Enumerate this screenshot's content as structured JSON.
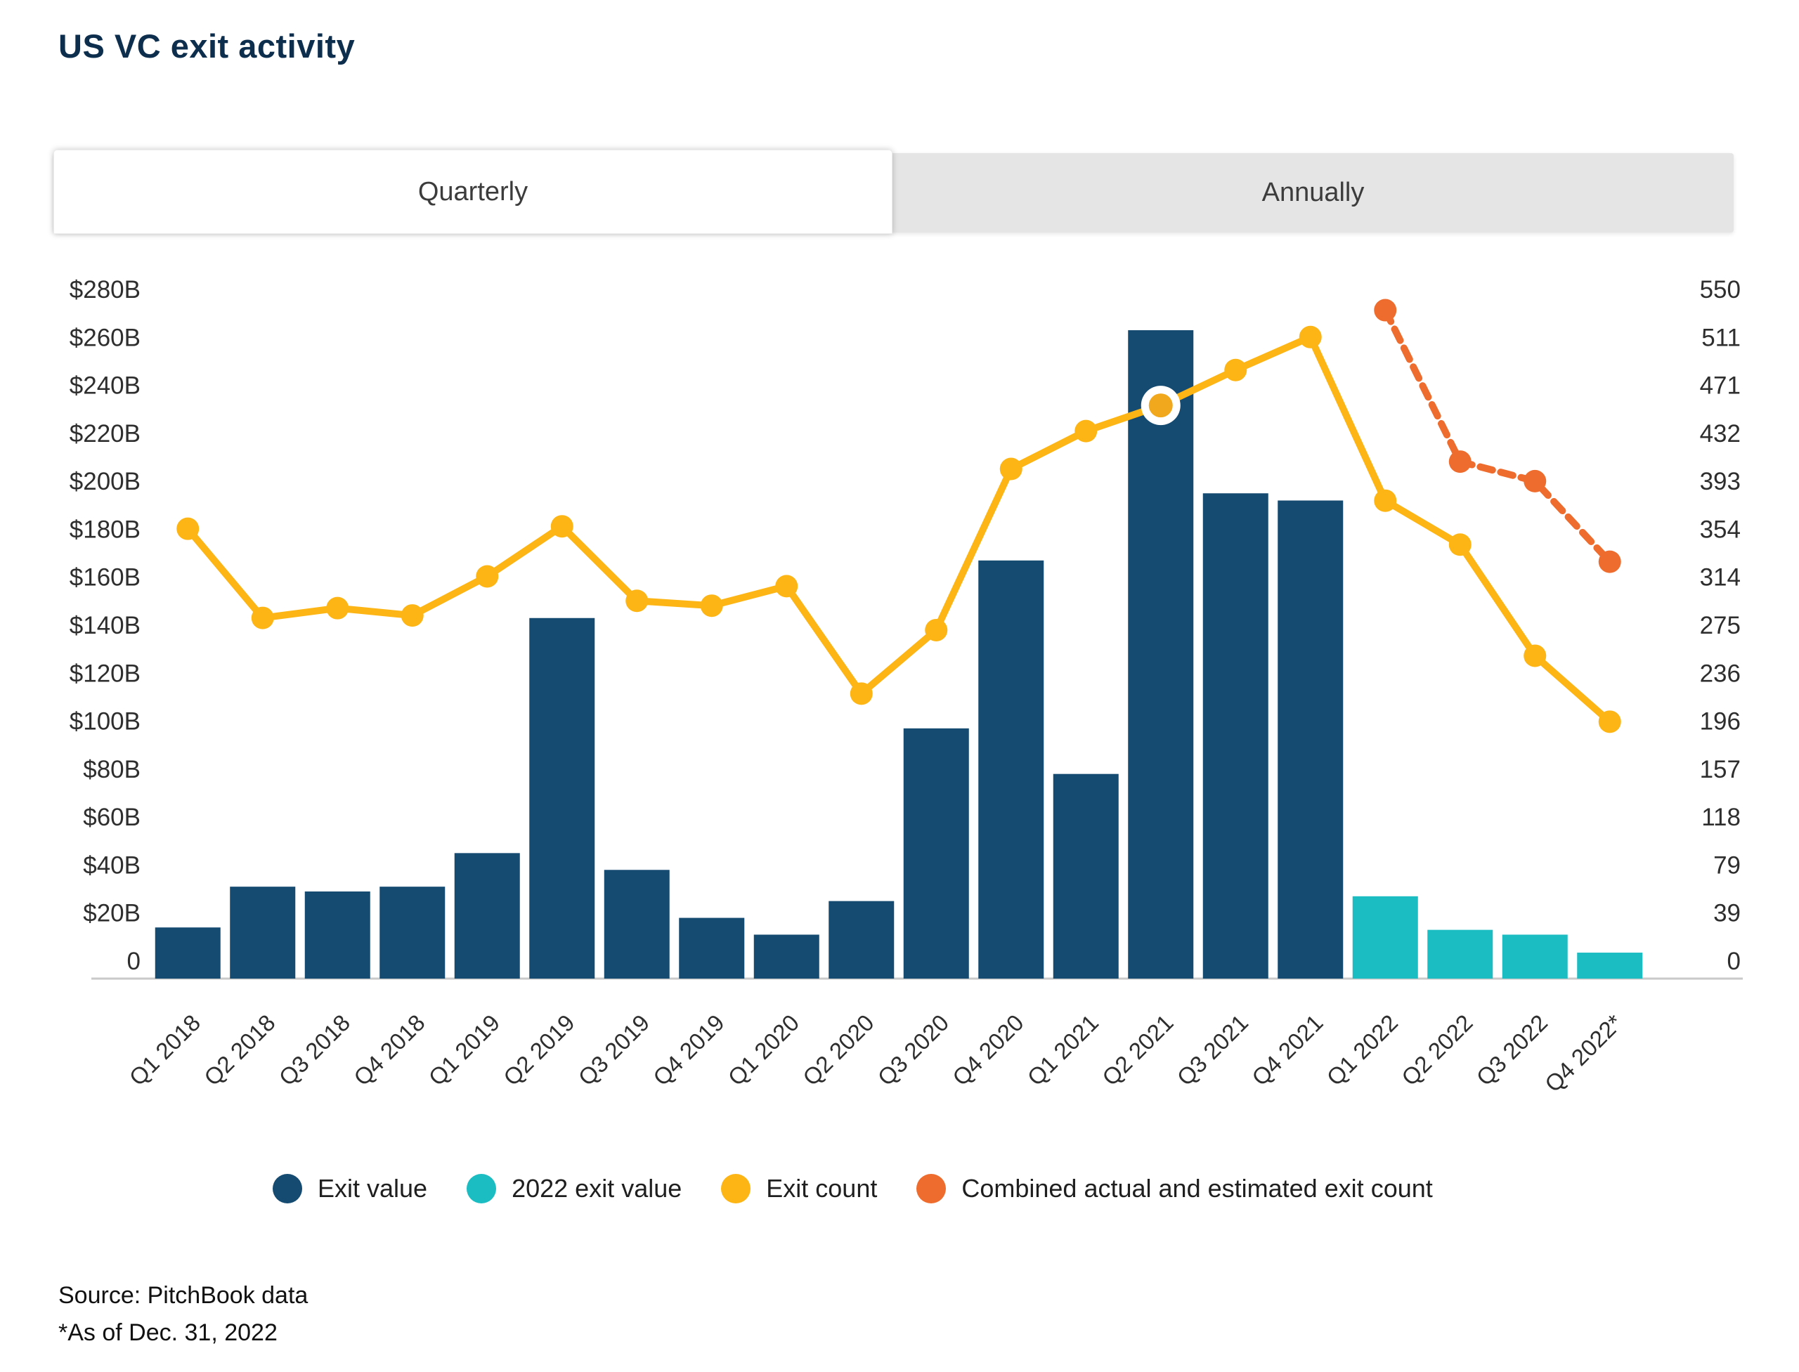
{
  "title": "US VC exit activity",
  "tabs": {
    "quarterly_label": "Quarterly",
    "annually_label": "Annually",
    "active": "Quarterly"
  },
  "colors": {
    "exit_value": "#154a71",
    "exit_value_2022": "#1bbcc2",
    "exit_count": "#fcb515",
    "combined_count": "#ee6c2d",
    "highlight_dot_fill": "#f2a81d",
    "highlight_ring": "#ffffff",
    "axis_text": "#2e2e2e",
    "axis_line": "#c9c9c9",
    "title_text": "#0e2e4e"
  },
  "legend": {
    "items": [
      {
        "label": "Exit value",
        "color_key": "exit_value"
      },
      {
        "label": "2022 exit value",
        "color_key": "exit_value_2022"
      },
      {
        "label": "Exit count",
        "color_key": "exit_count"
      },
      {
        "label": "Combined actual and estimated exit count",
        "color_key": "combined_count"
      }
    ]
  },
  "source": {
    "line1": "Source: PitchBook data",
    "line2": "*As of Dec. 31, 2022"
  },
  "chart_data": {
    "type": "bar",
    "subtype": "combo-bar-line-dual-axis",
    "categories": [
      "Q1 2018",
      "Q2 2018",
      "Q3 2018",
      "Q4 2018",
      "Q1 2019",
      "Q2 2019",
      "Q3 2019",
      "Q4 2019",
      "Q1 2020",
      "Q2 2020",
      "Q3 2020",
      "Q4 2020",
      "Q1 2021",
      "Q2 2021",
      "Q3 2021",
      "Q4 2021",
      "Q1 2022",
      "Q2 2022",
      "Q3 2022",
      "Q4 2022*"
    ],
    "left_axis": {
      "title": "Exit value ($B)",
      "tick_labels": [
        "$280B",
        "$260B",
        "$240B",
        "$220B",
        "$200B",
        "$180B",
        "$160B",
        "$140B",
        "$120B",
        "$100B",
        "$80B",
        "$60B",
        "$40B",
        "$20B",
        "0"
      ],
      "min": 0,
      "max": 280,
      "step": 20
    },
    "right_axis": {
      "title": "Exit count",
      "tick_labels": [
        "550",
        "511",
        "471",
        "432",
        "393",
        "354",
        "314",
        "275",
        "236",
        "196",
        "157",
        "118",
        "79",
        "39",
        "0"
      ],
      "min": 0,
      "max": 550
    },
    "series": [
      {
        "name": "Exit value",
        "type": "bar",
        "axis": "left",
        "color_key": "exit_value",
        "values": [
          14,
          31,
          29,
          31,
          45,
          143,
          38,
          18,
          11,
          25,
          97,
          167,
          78,
          263,
          195,
          192,
          null,
          null,
          null,
          null
        ]
      },
      {
        "name": "2022 exit value",
        "type": "bar",
        "axis": "left",
        "color_key": "exit_value_2022",
        "values": [
          null,
          null,
          null,
          null,
          null,
          null,
          null,
          null,
          null,
          null,
          null,
          null,
          null,
          null,
          null,
          null,
          27,
          13,
          11,
          3.5
        ]
      },
      {
        "name": "Exit count",
        "type": "line",
        "axis": "right",
        "color_key": "exit_count",
        "dashed": false,
        "highlight_category": "Q2 2021",
        "values": [
          354,
          281,
          289,
          283,
          315,
          356,
          295,
          291,
          307,
          219,
          271,
          403,
          434,
          455,
          484,
          511,
          377,
          341,
          250,
          196
        ]
      },
      {
        "name": "Combined actual and estimated exit count",
        "type": "line",
        "axis": "right",
        "color_key": "combined_count",
        "dashed": true,
        "values": [
          null,
          null,
          null,
          null,
          null,
          null,
          null,
          null,
          null,
          null,
          null,
          null,
          null,
          null,
          null,
          null,
          533,
          409,
          393,
          327
        ]
      }
    ],
    "legend_position": "bottom",
    "grid": false
  }
}
